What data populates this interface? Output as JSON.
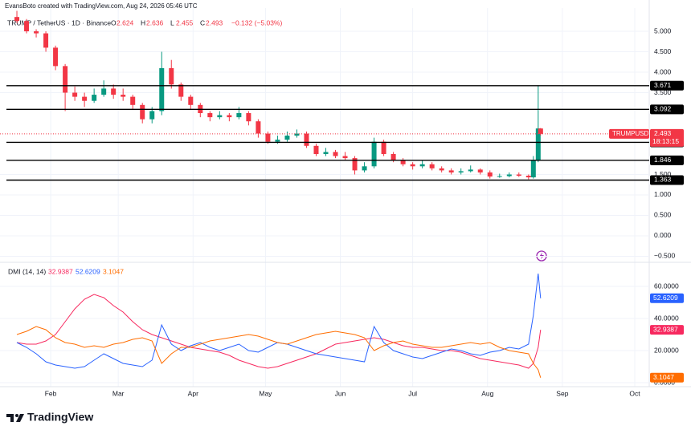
{
  "header": {
    "watermark": "EvansBoto created with TradingView.com, Aug 24, 2026 05:46 UTC",
    "symbol": "TRUMP / TetherUS · 1D · Binance",
    "ohlc_labels": [
      "O",
      "H",
      "L",
      "C"
    ],
    "change": "−0.132 (−5.03%)",
    "ticker": "TRUMPUSDT",
    "countdown": "18:13:15"
  },
  "brand": "TradingView",
  "chart_data": [
    {
      "type": "candlestick",
      "x": [
        18,
        22,
        26,
        30,
        34,
        38,
        42,
        46,
        50,
        54,
        58,
        62,
        66,
        70,
        74,
        78,
        82,
        86,
        90,
        94,
        98,
        102,
        106,
        110,
        114,
        118,
        122,
        126,
        130,
        134,
        138,
        142,
        146,
        150,
        154,
        158,
        162,
        166,
        170,
        174,
        178,
        182,
        186,
        190,
        194,
        198,
        202,
        206,
        210,
        214,
        218,
        222,
        226,
        230,
        232,
        234,
        235
      ],
      "open": [
        5.35,
        5.25,
        5.0,
        4.95,
        4.6,
        4.15,
        3.5,
        3.4,
        3.3,
        3.45,
        3.6,
        3.45,
        3.4,
        3.2,
        2.85,
        3.05,
        4.1,
        3.7,
        3.4,
        3.2,
        3.0,
        2.9,
        2.95,
        2.9,
        3.0,
        2.8,
        2.5,
        2.3,
        2.35,
        2.45,
        2.5,
        2.2,
        2.0,
        2.05,
        1.95,
        1.9,
        1.6,
        1.7,
        2.3,
        2.0,
        1.85,
        1.75,
        1.7,
        1.75,
        1.65,
        1.6,
        1.55,
        1.58,
        1.62,
        1.55,
        1.45,
        1.46,
        1.5,
        1.47,
        1.43,
        1.85,
        2.624
      ],
      "high": [
        5.5,
        5.3,
        5.05,
        5.0,
        4.65,
        4.2,
        3.65,
        3.5,
        3.6,
        3.8,
        3.7,
        3.6,
        3.45,
        3.25,
        3.15,
        4.5,
        4.3,
        3.75,
        3.45,
        3.25,
        3.05,
        3.05,
        3.0,
        3.15,
        3.05,
        2.85,
        2.55,
        2.45,
        2.55,
        2.6,
        2.55,
        2.25,
        2.15,
        2.1,
        2.05,
        1.95,
        1.8,
        2.4,
        2.35,
        2.05,
        1.9,
        1.8,
        1.85,
        1.8,
        1.7,
        1.65,
        1.65,
        1.72,
        1.65,
        1.6,
        1.52,
        1.55,
        1.55,
        1.5,
        1.95,
        3.671,
        2.636
      ],
      "low": [
        5.2,
        4.95,
        4.85,
        4.5,
        4.05,
        3.05,
        3.3,
        3.15,
        3.25,
        3.4,
        3.35,
        3.3,
        3.1,
        2.75,
        2.75,
        2.95,
        3.6,
        3.3,
        3.1,
        2.9,
        2.8,
        2.85,
        2.8,
        2.85,
        2.7,
        2.4,
        2.25,
        2.25,
        2.3,
        2.4,
        2.15,
        1.95,
        1.95,
        1.9,
        1.85,
        1.5,
        1.55,
        1.65,
        1.95,
        1.8,
        1.7,
        1.62,
        1.65,
        1.6,
        1.55,
        1.5,
        1.5,
        1.55,
        1.5,
        1.4,
        1.42,
        1.43,
        1.44,
        1.38,
        1.4,
        1.8,
        2.455
      ],
      "close": [
        5.25,
        5.0,
        4.95,
        4.6,
        4.15,
        3.5,
        3.4,
        3.3,
        3.45,
        3.6,
        3.45,
        3.4,
        3.2,
        2.85,
        3.05,
        4.1,
        3.7,
        3.4,
        3.2,
        3.0,
        2.9,
        2.95,
        2.9,
        3.0,
        2.8,
        2.5,
        2.3,
        2.35,
        2.45,
        2.5,
        2.2,
        2.0,
        2.05,
        1.95,
        1.9,
        1.6,
        1.7,
        2.3,
        2.0,
        1.85,
        1.75,
        1.7,
        1.75,
        1.65,
        1.6,
        1.55,
        1.58,
        1.62,
        1.55,
        1.45,
        1.46,
        1.5,
        1.47,
        1.43,
        1.85,
        2.625,
        2.493
      ],
      "up_color": "#089981",
      "down_color": "#f23645",
      "xlim": [
        11,
        280
      ],
      "ylim": [
        -0.608,
        5.569
      ],
      "yticks": [
        {
          "value": 5,
          "label": "5.000"
        },
        {
          "value": 4.5,
          "label": "4.500"
        },
        {
          "value": 4,
          "label": "4.000"
        },
        {
          "value": 3.5,
          "label": "3.500"
        },
        {
          "value": 1.5,
          "label": "1.500"
        },
        {
          "value": 1,
          "label": "1.000"
        },
        {
          "value": 0.5,
          "label": "0.500"
        },
        {
          "value": 0,
          "label": "0.000"
        },
        {
          "value": -0.5,
          "label": "−0.500"
        }
      ],
      "grid": true,
      "levels": [
        3.671,
        3.092,
        2.285,
        1.846,
        1.363
      ],
      "level_color": "#000000"
    },
    {
      "type": "line",
      "title": "DMI (14, 14)",
      "x": [
        18,
        22,
        26,
        30,
        34,
        38,
        42,
        46,
        50,
        54,
        58,
        62,
        66,
        70,
        74,
        78,
        82,
        86,
        90,
        94,
        98,
        102,
        106,
        110,
        114,
        118,
        122,
        126,
        130,
        134,
        138,
        142,
        146,
        150,
        154,
        158,
        162,
        166,
        170,
        174,
        178,
        182,
        186,
        190,
        194,
        198,
        202,
        206,
        210,
        214,
        218,
        222,
        226,
        230,
        232,
        234,
        235
      ],
      "series": [
        {
          "color": "#f7295f",
          "values": [
            25,
            24,
            24,
            26,
            30,
            38,
            46,
            52,
            55,
            53,
            48,
            44,
            38,
            33,
            30,
            28,
            26,
            24,
            22,
            21,
            20,
            19,
            17,
            14,
            12,
            10,
            9,
            10,
            12,
            14,
            16,
            18,
            21,
            24,
            25,
            26,
            27,
            28,
            27,
            25,
            23,
            22,
            22,
            21,
            20,
            20,
            19,
            17,
            15,
            14,
            13,
            12,
            11,
            9,
            12,
            22,
            32.9387
          ]
        },
        {
          "color": "#2962ff",
          "values": [
            25,
            22,
            18,
            13,
            11,
            10,
            9,
            10,
            14,
            18,
            15,
            12,
            11,
            10,
            14,
            36,
            24,
            20,
            23,
            25,
            22,
            20,
            22,
            24,
            20,
            19,
            22,
            25,
            24,
            22,
            20,
            18,
            17,
            16,
            15,
            14,
            13,
            35,
            25,
            20,
            18,
            16,
            15,
            17,
            19,
            21,
            20,
            18,
            17,
            19,
            20,
            22,
            21,
            24,
            42,
            68,
            52.6209
          ]
        },
        {
          "color": "#ff6d00",
          "values": [
            30,
            32,
            35,
            33,
            28,
            25,
            24,
            22,
            23,
            22,
            24,
            25,
            27,
            28,
            26,
            12,
            18,
            22,
            22,
            24,
            26,
            27,
            28,
            29,
            30,
            29,
            27,
            25,
            24,
            26,
            28,
            30,
            31,
            32,
            31,
            30,
            28,
            20,
            23,
            25,
            26,
            24,
            23,
            22,
            22,
            23,
            24,
            25,
            24,
            25,
            22,
            20,
            19,
            18,
            12,
            8,
            3.1047
          ]
        }
      ],
      "xlim": [
        11,
        280
      ],
      "ylim": [
        -2.5,
        73.5
      ],
      "yticks": [
        {
          "value": 60,
          "label": "60.0000"
        },
        {
          "value": 40,
          "label": "40.0000"
        },
        {
          "value": 20,
          "label": "20.0000"
        },
        {
          "value": 0,
          "label": "0.0000"
        }
      ],
      "xticks": [
        {
          "value": 32,
          "label": "Feb"
        },
        {
          "value": 60,
          "label": "Mar"
        },
        {
          "value": 91,
          "label": "Apr"
        },
        {
          "value": 121,
          "label": "May"
        },
        {
          "value": 152,
          "label": "Jun"
        },
        {
          "value": 182,
          "label": "Jul"
        },
        {
          "value": 213,
          "label": "Aug"
        },
        {
          "value": 244,
          "label": "Sep"
        },
        {
          "value": 274,
          "label": "Oct"
        }
      ]
    }
  ]
}
